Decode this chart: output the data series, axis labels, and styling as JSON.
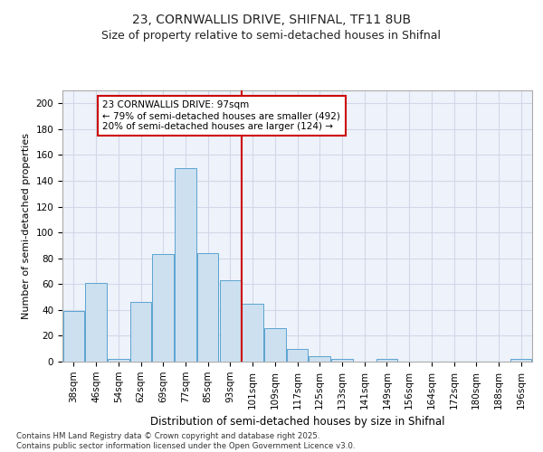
{
  "title_line1": "23, CORNWALLIS DRIVE, SHIFNAL, TF11 8UB",
  "title_line2": "Size of property relative to semi-detached houses in Shifnal",
  "xlabel": "Distribution of semi-detached houses by size in Shifnal",
  "ylabel": "Number of semi-detached properties",
  "categories": [
    "38sqm",
    "46sqm",
    "54sqm",
    "62sqm",
    "69sqm",
    "77sqm",
    "85sqm",
    "93sqm",
    "101sqm",
    "109sqm",
    "117sqm",
    "125sqm",
    "133sqm",
    "141sqm",
    "149sqm",
    "156sqm",
    "164sqm",
    "172sqm",
    "180sqm",
    "188sqm",
    "196sqm"
  ],
  "values": [
    39,
    61,
    2,
    46,
    83,
    150,
    84,
    63,
    45,
    26,
    10,
    4,
    2,
    0,
    2,
    0,
    0,
    0,
    0,
    0,
    2
  ],
  "bar_color": "#cce0f0",
  "bar_edge_color": "#5ba3d0",
  "grid_color": "#d0d8e8",
  "background_color": "#eef2fa",
  "property_line_x": 7.5,
  "annotation_text": "23 CORNWALLIS DRIVE: 97sqm\n← 79% of semi-detached houses are smaller (492)\n20% of semi-detached houses are larger (124) →",
  "annotation_box_color": "#ffffff",
  "annotation_box_edge": "#cc0000",
  "property_line_color": "#cc0000",
  "footer_line1": "Contains HM Land Registry data © Crown copyright and database right 2025.",
  "footer_line2": "Contains public sector information licensed under the Open Government Licence v3.0.",
  "ylim": [
    0,
    210
  ],
  "yticks": [
    0,
    20,
    40,
    60,
    80,
    100,
    120,
    140,
    160,
    180,
    200
  ],
  "title_fontsize": 10,
  "subtitle_fontsize": 9,
  "ylabel_fontsize": 8,
  "xlabel_fontsize": 8.5,
  "tick_fontsize": 7.5,
  "footer_fontsize": 6.2,
  "annot_fontsize": 7.5
}
